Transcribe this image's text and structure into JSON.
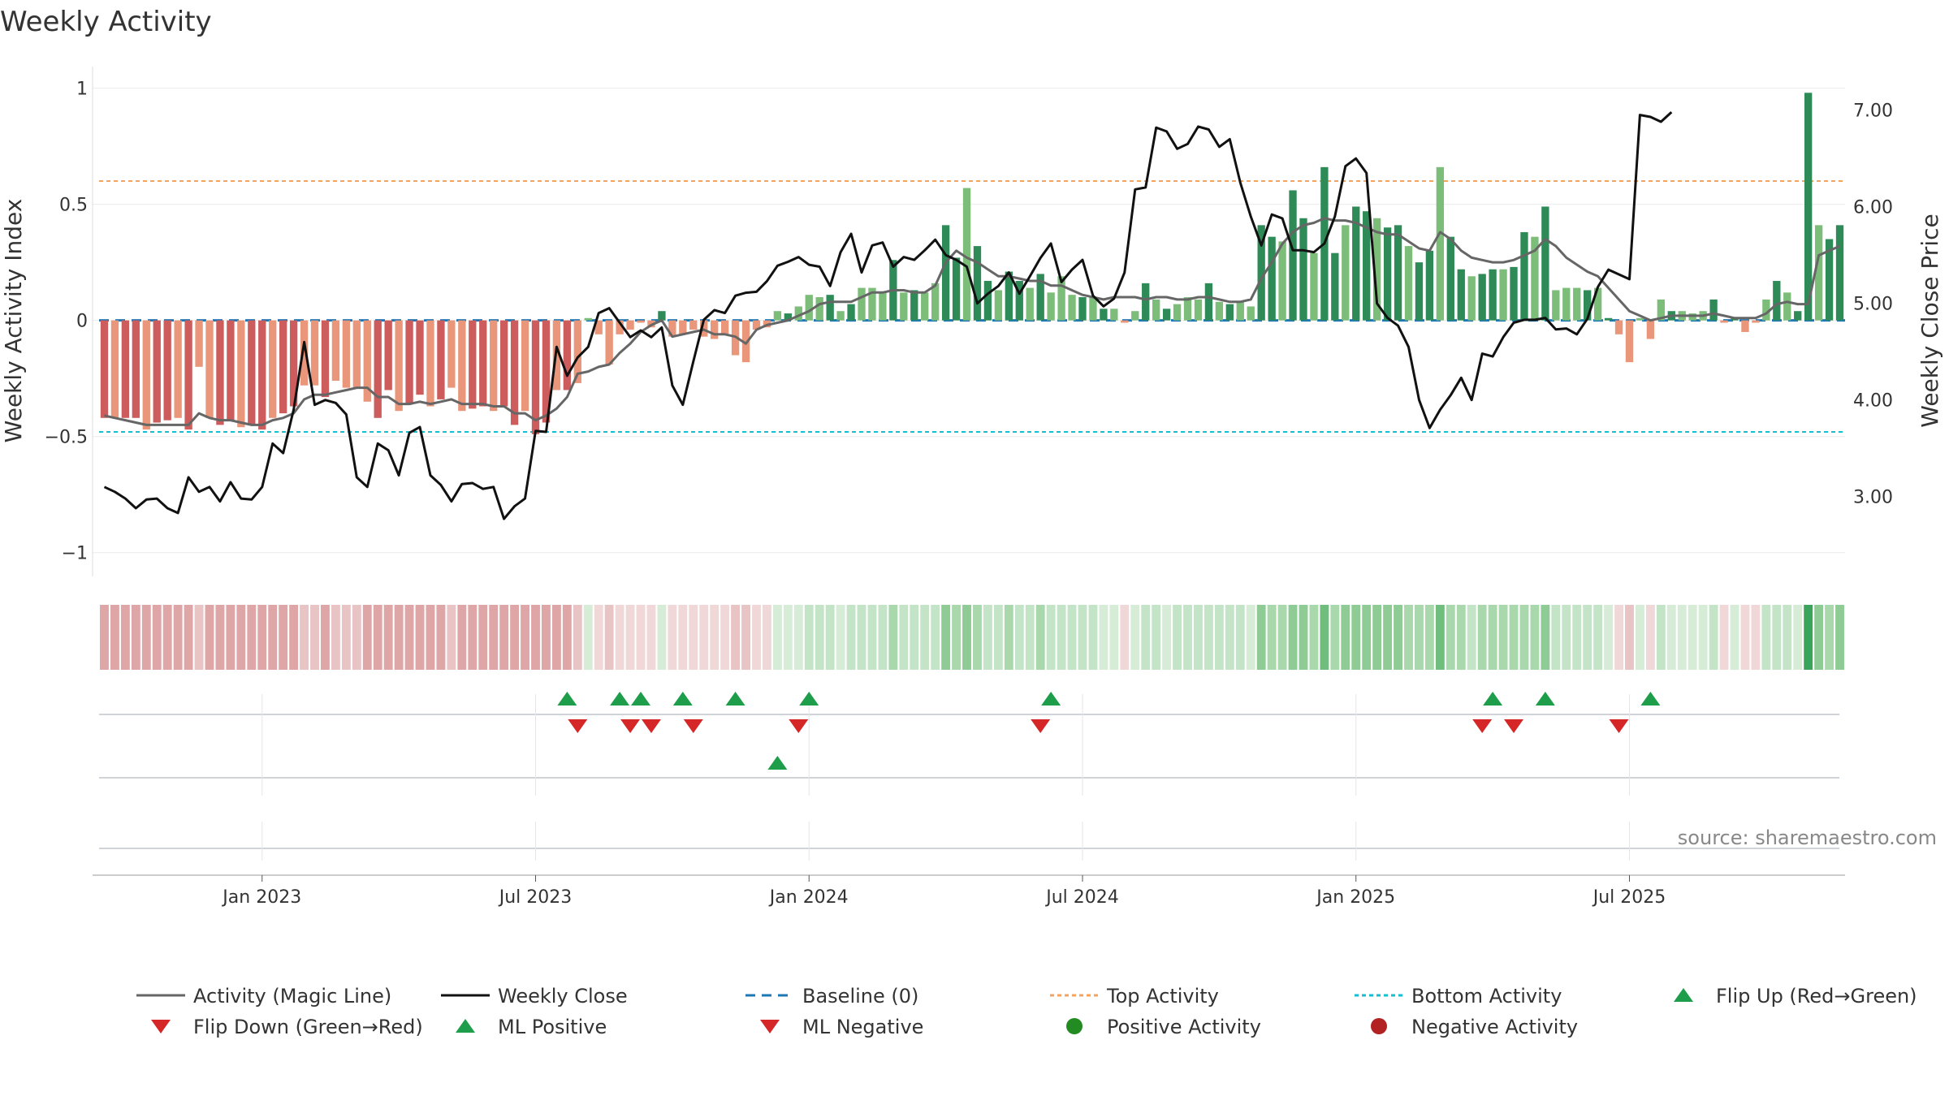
{
  "colors": {
    "pos_strong": "#2e8b57",
    "pos_light": "#7dbd7a",
    "neg_strong": "#cd5c5c",
    "neg_light": "#e9967a",
    "magic": "#666666",
    "close": "#111111",
    "baseline": "#1f77b4",
    "top": "#f4a460",
    "bottom": "#17becf",
    "up": "#1e9e4a",
    "down": "#d62728",
    "pos_dot": "#228b22",
    "neg_dot": "#b22222"
  },
  "chart_data": {
    "type": "bar",
    "title": "Weekly Activity",
    "ylabel_left": "Weekly Activity Index",
    "ylabel_right": "Weekly Close Price",
    "ylim_left": [
      -1.05,
      1.03
    ],
    "ylim_right": [
      2.3,
      7.3
    ],
    "yticks_left": [
      {
        "v": 1,
        "label": "1"
      },
      {
        "v": 0.5,
        "label": "0.5"
      },
      {
        "v": 0,
        "label": "0"
      },
      {
        "v": -0.5,
        "label": "−0.5"
      },
      {
        "v": -1,
        "label": "−1"
      }
    ],
    "yticks_right": [
      {
        "v": 7,
        "label": "7.00"
      },
      {
        "v": 6,
        "label": "6.00"
      },
      {
        "v": 5,
        "label": "5.00"
      },
      {
        "v": 4,
        "label": "4.00"
      },
      {
        "v": 3,
        "label": "3.00"
      }
    ],
    "x_ticks": [
      {
        "week": 15,
        "label": "Jan 2023"
      },
      {
        "week": 41,
        "label": "Jul 2023"
      },
      {
        "week": 67,
        "label": "Jan 2024"
      },
      {
        "week": 93,
        "label": "Jul 2024"
      },
      {
        "week": 119,
        "label": "Jan 2025"
      },
      {
        "week": 145,
        "label": "Jul 2025"
      }
    ],
    "top_activity": 0.6,
    "bottom_activity": -0.48,
    "activity": [
      -0.42,
      -0.42,
      -0.42,
      -0.42,
      -0.47,
      -0.44,
      -0.43,
      -0.42,
      -0.47,
      -0.2,
      -0.42,
      -0.45,
      -0.43,
      -0.46,
      -0.45,
      -0.47,
      -0.42,
      -0.4,
      -0.37,
      -0.28,
      -0.28,
      -0.33,
      -0.26,
      -0.29,
      -0.29,
      -0.35,
      -0.42,
      -0.3,
      -0.39,
      -0.36,
      -0.32,
      -0.37,
      -0.34,
      -0.29,
      -0.39,
      -0.38,
      -0.37,
      -0.39,
      -0.37,
      -0.45,
      -0.39,
      -0.49,
      -0.44,
      -0.3,
      -0.3,
      -0.27,
      0.01,
      -0.06,
      -0.19,
      -0.06,
      -0.04,
      -0.01,
      -0.03,
      0.04,
      -0.07,
      -0.06,
      -0.04,
      -0.07,
      -0.08,
      -0.06,
      -0.15,
      -0.18,
      -0.04,
      -0.03,
      0.04,
      0.03,
      0.06,
      0.11,
      0.1,
      0.11,
      0.04,
      0.07,
      0.14,
      0.14,
      0.12,
      0.26,
      0.12,
      0.13,
      0.12,
      0.16,
      0.41,
      0.27,
      0.57,
      0.32,
      0.17,
      0.13,
      0.21,
      0.17,
      0.14,
      0.2,
      0.12,
      0.19,
      0.11,
      0.1,
      0.1,
      0.05,
      0.05,
      -0.01,
      0.04,
      0.16,
      0.09,
      0.05,
      0.07,
      0.1,
      0.09,
      0.16,
      0.08,
      0.07,
      0.08,
      0.06,
      0.41,
      0.36,
      0.34,
      0.56,
      0.44,
      0.29,
      0.66,
      0.29,
      0.41,
      0.49,
      0.47,
      0.44,
      0.4,
      0.41,
      0.32,
      0.25,
      0.3,
      0.66,
      0.36,
      0.22,
      0.19,
      0.2,
      0.22,
      0.22,
      0.23,
      0.38,
      0.36,
      0.49,
      0.13,
      0.14,
      0.14,
      0.13,
      0.14,
      0.01,
      -0.06,
      -0.18,
      0.01,
      -0.08,
      0.09,
      0.04,
      0.04,
      0.03,
      0.04,
      0.09,
      -0.01,
      0.01,
      -0.05,
      -0.01,
      0.09,
      0.17,
      0.12,
      0.04,
      0.98,
      0.41,
      0.35,
      0.41
    ],
    "magic_line": [
      -0.41,
      -0.42,
      -0.43,
      -0.44,
      -0.45,
      -0.45,
      -0.45,
      -0.45,
      -0.45,
      -0.4,
      -0.42,
      -0.43,
      -0.43,
      -0.44,
      -0.45,
      -0.45,
      -0.43,
      -0.42,
      -0.4,
      -0.34,
      -0.32,
      -0.32,
      -0.31,
      -0.3,
      -0.29,
      -0.29,
      -0.33,
      -0.33,
      -0.36,
      -0.36,
      -0.35,
      -0.36,
      -0.35,
      -0.34,
      -0.36,
      -0.36,
      -0.36,
      -0.37,
      -0.37,
      -0.4,
      -0.4,
      -0.43,
      -0.41,
      -0.38,
      -0.33,
      -0.23,
      -0.22,
      -0.2,
      -0.19,
      -0.14,
      -0.1,
      -0.05,
      -0.02,
      0,
      -0.07,
      -0.06,
      -0.05,
      -0.04,
      -0.06,
      -0.06,
      -0.07,
      -0.1,
      -0.04,
      -0.02,
      -0.01,
      0,
      0.02,
      0.04,
      0.07,
      0.08,
      0.08,
      0.08,
      0.1,
      0.12,
      0.12,
      0.13,
      0.13,
      0.12,
      0.12,
      0.15,
      0.25,
      0.3,
      0.27,
      0.25,
      0.22,
      0.19,
      0.19,
      0.18,
      0.17,
      0.17,
      0.15,
      0.15,
      0.13,
      0.11,
      0.1,
      0.09,
      0.1,
      0.1,
      0.1,
      0.09,
      0.1,
      0.1,
      0.09,
      0.09,
      0.1,
      0.1,
      0.09,
      0.08,
      0.08,
      0.09,
      0.18,
      0.25,
      0.33,
      0.38,
      0.41,
      0.42,
      0.44,
      0.43,
      0.43,
      0.42,
      0.4,
      0.38,
      0.37,
      0.37,
      0.34,
      0.31,
      0.3,
      0.38,
      0.35,
      0.3,
      0.27,
      0.26,
      0.25,
      0.25,
      0.26,
      0.28,
      0.3,
      0.35,
      0.32,
      0.27,
      0.24,
      0.21,
      0.19,
      0.14,
      0.09,
      0.04,
      0.02,
      0,
      0.01,
      0.02,
      0.02,
      0.02,
      0.02,
      0.03,
      0.02,
      0.01,
      0.01,
      0.01,
      0.03,
      0.07,
      0.08,
      0.07,
      0.07,
      0.28,
      0.3,
      0.32
    ],
    "weekly_close": [
      3.1,
      3.05,
      2.98,
      2.88,
      2.97,
      2.98,
      2.88,
      2.83,
      3.2,
      3.05,
      3.1,
      2.95,
      3.15,
      2.98,
      2.97,
      3.1,
      3.55,
      3.45,
      3.9,
      4.6,
      3.95,
      4.0,
      3.97,
      3.85,
      3.2,
      3.1,
      3.55,
      3.48,
      3.22,
      3.66,
      3.72,
      3.22,
      3.12,
      2.95,
      3.13,
      3.14,
      3.08,
      3.1,
      2.77,
      2.9,
      2.98,
      3.68,
      3.67,
      4.55,
      4.25,
      4.44,
      4.55,
      4.9,
      4.95,
      4.8,
      4.65,
      4.72,
      4.65,
      4.75,
      4.15,
      3.95,
      4.4,
      4.83,
      4.93,
      4.9,
      5.08,
      5.11,
      5.12,
      5.23,
      5.39,
      5.43,
      5.48,
      5.4,
      5.38,
      5.18,
      5.53,
      5.72,
      5.32,
      5.6,
      5.63,
      5.38,
      5.48,
      5.45,
      5.55,
      5.66,
      5.5,
      5.45,
      5.38,
      5.0,
      5.1,
      5.18,
      5.32,
      5.1,
      5.28,
      5.47,
      5.62,
      5.22,
      5.35,
      5.45,
      5.08,
      4.97,
      5.05,
      5.32,
      6.18,
      6.2,
      6.82,
      6.78,
      6.6,
      6.65,
      6.83,
      6.8,
      6.62,
      6.7,
      6.25,
      5.9,
      5.6,
      5.92,
      5.88,
      5.55,
      5.55,
      5.53,
      5.62,
      5.9,
      6.42,
      6.5,
      6.35,
      5.0,
      4.85,
      4.77,
      4.55,
      4.0,
      3.71,
      3.9,
      4.05,
      4.23,
      4.0,
      4.48,
      4.45,
      4.65,
      4.8,
      4.83,
      4.83,
      4.85,
      4.73,
      4.74,
      4.68,
      4.84,
      5.17,
      5.35,
      5.3,
      5.25,
      6.95,
      6.93,
      6.88,
      6.98
    ],
    "flip_up_weeks": [
      44,
      49,
      51,
      55,
      60,
      67,
      90,
      132,
      137,
      147
    ],
    "flip_down_weeks": [
      45,
      50,
      52,
      56,
      66,
      89,
      131,
      134,
      144
    ],
    "ml_positive_weeks": [
      64
    ],
    "ml_negative_weeks": [],
    "positive_activity_weeks": [],
    "negative_activity_weeks": [],
    "source": "source: sharemaestro.com",
    "legend": [
      "Activity (Magic Line)",
      "Weekly Close",
      "Baseline (0)",
      "Top Activity",
      "Bottom Activity",
      "Flip Up (Red→Green)",
      "Flip Down (Green→Red)",
      "ML Positive",
      "ML Negative",
      "Positive Activity",
      "Negative Activity"
    ]
  }
}
